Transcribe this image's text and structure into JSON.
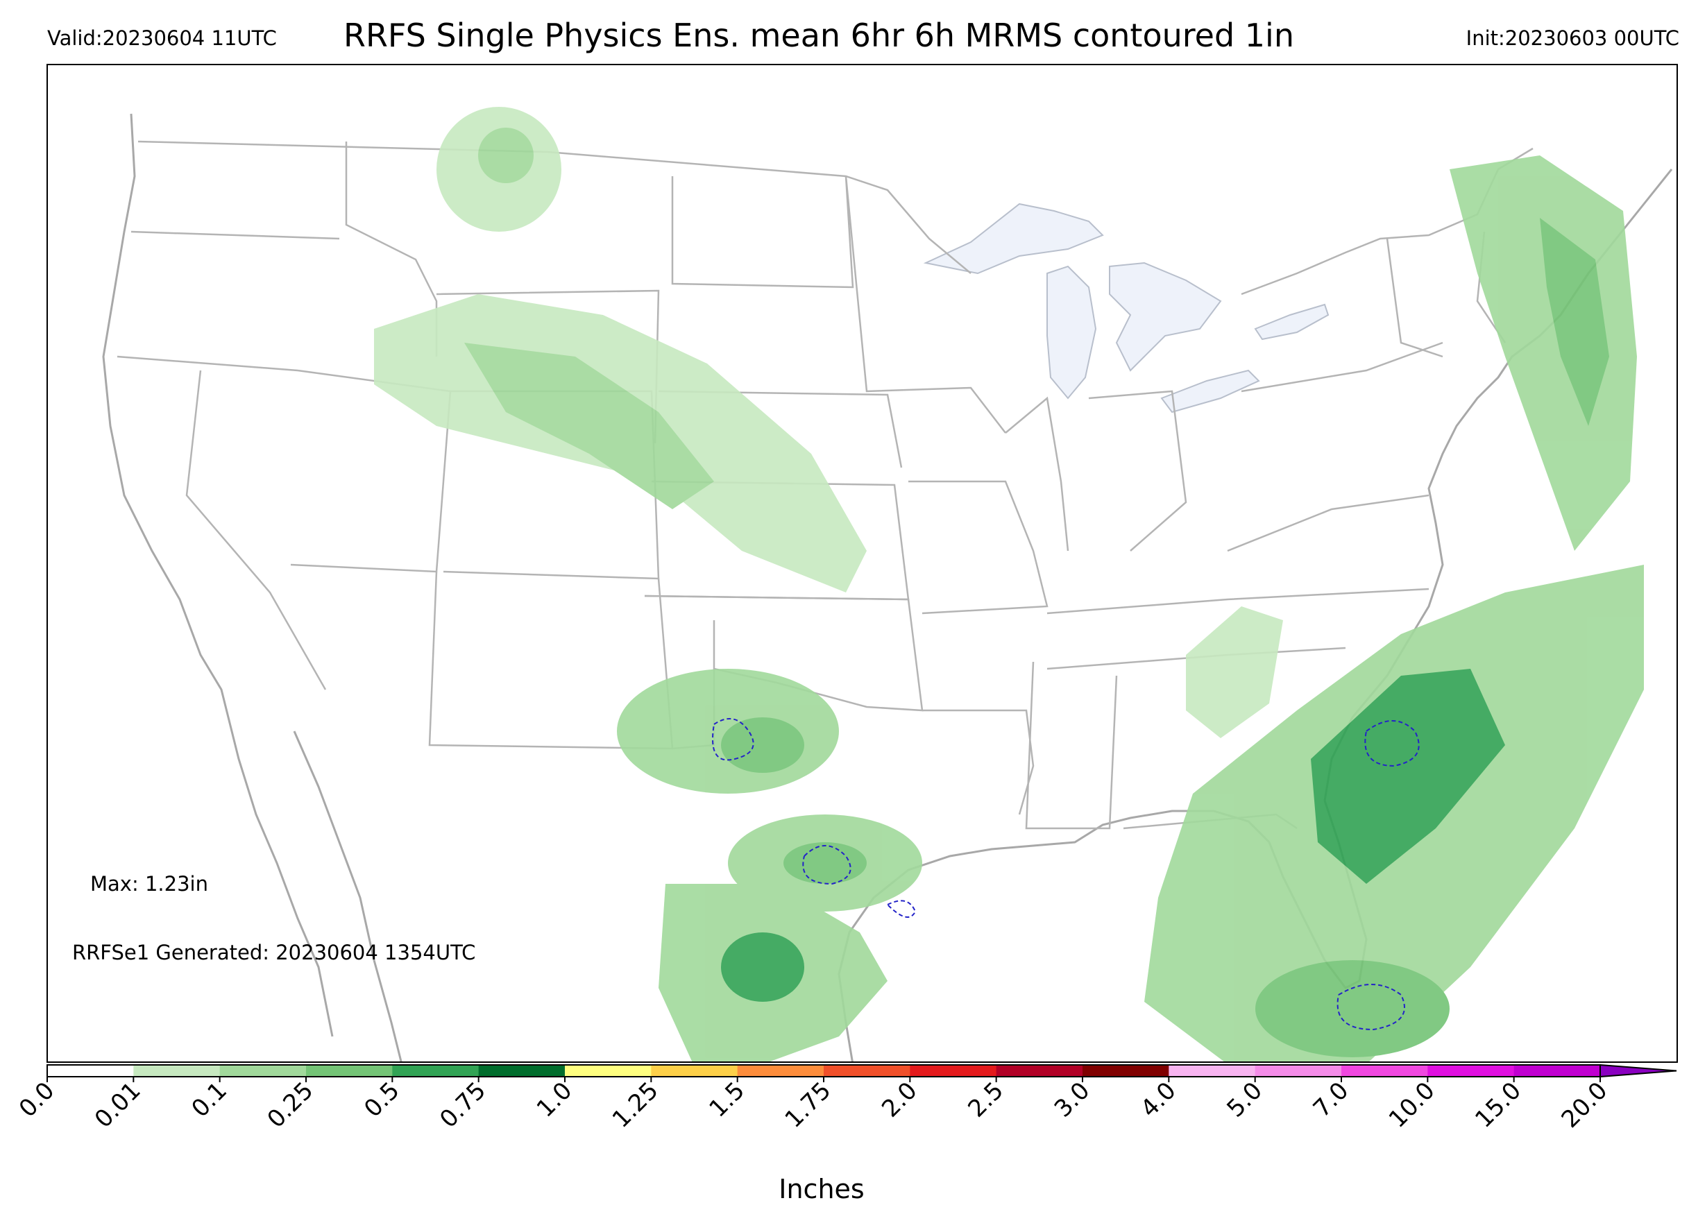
{
  "header": {
    "valid": "Valid:20230604 11UTC",
    "title": "RRFS Single Physics Ens. mean 6hr 6h MRMS contoured 1in",
    "init": "Init:20230603 00UTC"
  },
  "annotations": {
    "max": "Max: 1.23in",
    "generated": "RRFSe1 Generated: 20230604 1354UTC"
  },
  "colorbar": {
    "title": "Inches",
    "ticks": [
      "0.0",
      "0.01",
      "0.1",
      "0.25",
      "0.5",
      "0.75",
      "1.0",
      "1.25",
      "1.5",
      "1.75",
      "2.0",
      "2.5",
      "3.0",
      "4.0",
      "5.0",
      "7.0",
      "10.0",
      "15.0",
      "20.0"
    ],
    "colors": [
      "#ffffff",
      "#c7e9c0",
      "#a1d99b",
      "#74c476",
      "#31a354",
      "#006d2c",
      "#ffff80",
      "#fdd049",
      "#fd8d3c",
      "#f0502a",
      "#e31a1c",
      "#b10026",
      "#800000",
      "#f8b4f0",
      "#f48ce8",
      "#f048e0",
      "#e010e0",
      "#c000d0",
      "#8a00c0"
    ],
    "extend": "max"
  },
  "map": {
    "land_color": "#ffffff",
    "lake_color": "#eef2fa",
    "border_color": "#a8a8a8",
    "contour_color": "#2323c8",
    "precip_regions": [
      "Northern Rockies / Montana",
      "Wyoming / Colorado / Nebraska",
      "Oklahoma / Texas Panhandle",
      "South Texas",
      "Southeast Coast / Florida",
      "New England / Atlantic"
    ]
  }
}
